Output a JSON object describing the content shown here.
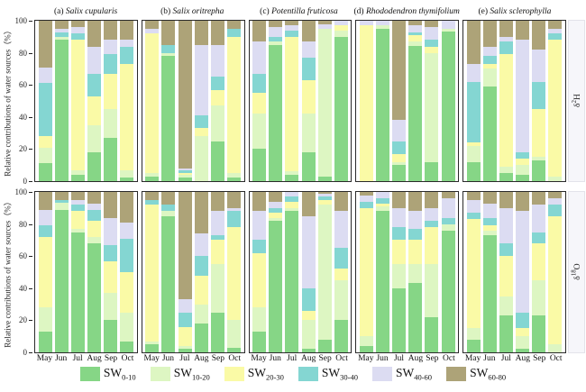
{
  "chart_data": {
    "type": "bar",
    "subtype": "stacked-100-percent",
    "categories": [
      "May",
      "Jun",
      "Jul",
      "Aug",
      "Sep",
      "Oct"
    ],
    "ylabel": "Relative contributions of water sources（%）",
    "yticks": [
      0,
      20,
      40,
      60,
      80,
      100
    ],
    "ylim": [
      0,
      100
    ],
    "grid": "off",
    "legend_position": "bottom",
    "series": [
      {
        "label": "SW",
        "sub": "0-10",
        "color": "#86d686"
      },
      {
        "label": "SW",
        "sub": "10-20",
        "color": "#ddf6c2"
      },
      {
        "label": "SW",
        "sub": "20-30",
        "color": "#fafaa6"
      },
      {
        "label": "SW",
        "sub": "30-40",
        "color": "#84d6d2"
      },
      {
        "label": "SW",
        "sub": "40-60",
        "color": "#dcdcf2"
      },
      {
        "label": "SW",
        "sub": "60-80",
        "color": "#ada378"
      }
    ],
    "rows": [
      {
        "strip": {
          "pre": "δ",
          "sup": "2",
          "sym": "H"
        },
        "panels": [
          {
            "tag": "(a)",
            "species": "Salix cupularis",
            "bars": [
              [
                11,
                10,
                7,
                33,
                10,
                29
              ],
              [
                88,
                2,
                0,
                3,
                2,
                5
              ],
              [
                4,
                3,
                81,
                4,
                4,
                4
              ],
              [
                18,
                17,
                18,
                14,
                17,
                16
              ],
              [
                27,
                18,
                22,
                12,
                9,
                12
              ],
              [
                2,
                5,
                66,
                11,
                4,
                12
              ]
            ]
          },
          {
            "tag": "(b)",
            "species": "Salix oritrepha",
            "bars": [
              [
                3,
                2,
                87,
                0,
                3,
                5
              ],
              [
                78,
                2,
                0,
                5,
                0,
                15
              ],
              [
                2,
                2,
                1,
                2,
                1,
                92
              ],
              [
                0,
                28,
                5,
                8,
                44,
                15
              ],
              [
                25,
                22,
                10,
                8,
                20,
                15
              ],
              [
                2,
                3,
                85,
                5,
                0,
                5
              ]
            ]
          },
          {
            "tag": "(c)",
            "species": "Potentilla fruticosa",
            "bars": [
              [
                20,
                22,
                13,
                12,
                20,
                13
              ],
              [
                85,
                2,
                0,
                3,
                6,
                4
              ],
              [
                4,
                2,
                84,
                4,
                3,
                3
              ],
              [
                18,
                24,
                21,
                14,
                10,
                13
              ],
              [
                3,
                92,
                0,
                0,
                3,
                2
              ],
              [
                90,
                4,
                3,
                0,
                3,
                0
              ]
            ]
          },
          {
            "tag": "(d)",
            "species": "Rhododendron thymifolium",
            "bars": [
              [
                0,
                0,
                97,
                0,
                3,
                0
              ],
              [
                95,
                2,
                0,
                0,
                3,
                0
              ],
              [
                10,
                2,
                5,
                8,
                13,
                62
              ],
              [
                84,
                3,
                4,
                2,
                4,
                3
              ],
              [
                12,
                68,
                4,
                4,
                8,
                4
              ],
              [
                93,
                2,
                0,
                0,
                5,
                0
              ]
            ]
          },
          {
            "tag": "(e)",
            "species": "Salix sclerophylla",
            "bars": [
              [
                12,
                10,
                2,
                38,
                11,
                27
              ],
              [
                59,
                11,
                3,
                5,
                6,
                16
              ],
              [
                5,
                4,
                70,
                8,
                3,
                10
              ],
              [
                4,
                6,
                4,
                4,
                70,
                12
              ],
              [
                13,
                2,
                30,
                17,
                20,
                18
              ],
              [
                0,
                3,
                85,
                4,
                3,
                5
              ]
            ]
          }
        ]
      },
      {
        "strip": {
          "pre": "δ",
          "sup": "18",
          "sym": "O"
        },
        "panels": [
          {
            "tag": "(a)",
            "species": "Salix cupularis",
            "bars": [
              [
                13,
                15,
                44,
                7,
                10,
                11
              ],
              [
                89,
                4,
                0,
                2,
                0,
                5
              ],
              [
                75,
                2,
                11,
                4,
                3,
                5
              ],
              [
                68,
                4,
                10,
                7,
                4,
                7
              ],
              [
                20,
                17,
                20,
                10,
                17,
                16
              ],
              [
                7,
                18,
                25,
                21,
                10,
                19
              ]
            ]
          },
          {
            "tag": "(b)",
            "species": "Salix oritrepha",
            "bars": [
              [
                5,
                2,
                85,
                3,
                0,
                5
              ],
              [
                85,
                3,
                0,
                4,
                0,
                8
              ],
              [
                2,
                2,
                12,
                9,
                8,
                67
              ],
              [
                18,
                12,
                18,
                12,
                14,
                26
              ],
              [
                25,
                30,
                15,
                3,
                15,
                12
              ],
              [
                3,
                17,
                58,
                10,
                2,
                10
              ]
            ]
          },
          {
            "tag": "(c)",
            "species": "Potentilla fruticosa",
            "bars": [
              [
                13,
                15,
                34,
                8,
                18,
                12
              ],
              [
                82,
                2,
                3,
                3,
                4,
                6
              ],
              [
                88,
                2,
                4,
                3,
                3,
                0
              ],
              [
                2,
                18,
                6,
                14,
                45,
                15
              ],
              [
                8,
                84,
                3,
                2,
                2,
                1
              ],
              [
                20,
                25,
                7,
                13,
                23,
                12
              ]
            ]
          },
          {
            "tag": "(d)",
            "species": "Rhododendron thymifolium",
            "bars": [
              [
                4,
                6,
                80,
                4,
                4,
                2
              ],
              [
                88,
                3,
                2,
                3,
                4,
                0
              ],
              [
                40,
                15,
                15,
                8,
                12,
                10
              ],
              [
                43,
                12,
                15,
                7,
                11,
                12
              ],
              [
                22,
                33,
                23,
                4,
                8,
                10
              ],
              [
                76,
                4,
                0,
                4,
                12,
                4
              ]
            ]
          },
          {
            "tag": "(e)",
            "species": "Salix sclerophylla",
            "bars": [
              [
                8,
                7,
                68,
                4,
                8,
                5
              ],
              [
                73,
                3,
                3,
                5,
                9,
                7
              ],
              [
                23,
                12,
                25,
                8,
                22,
                10
              ],
              [
                2,
                8,
                5,
                10,
                63,
                12
              ],
              [
                23,
                22,
                23,
                7,
                17,
                8
              ],
              [
                0,
                5,
                80,
                7,
                4,
                4
              ]
            ]
          }
        ]
      }
    ]
  }
}
